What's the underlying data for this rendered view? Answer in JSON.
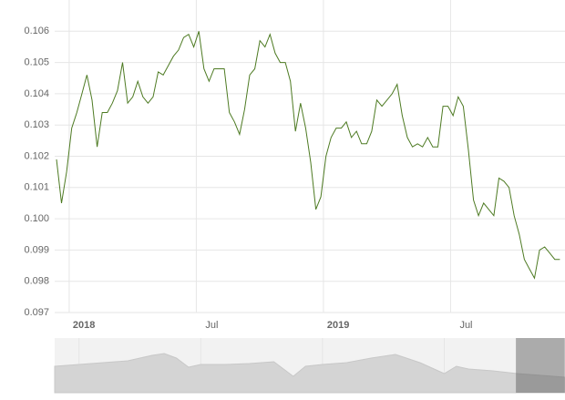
{
  "chart_data": [
    {
      "type": "line",
      "color": "#4d7a22",
      "grid": true,
      "xlim": [
        2017.943,
        2019.95
      ],
      "xticks": [
        2018,
        {
          "value": 2018.5,
          "label": "Jul"
        },
        2019,
        {
          "value": 2019.5,
          "label": "Jul"
        }
      ],
      "ylim": [
        0.097,
        0.107
      ],
      "yticks": [
        0.097,
        0.098,
        0.099,
        {
          "value": 0.1,
          "label": "0.100"
        },
        0.101,
        0.102,
        0.103,
        0.104,
        0.105,
        0.106
      ],
      "x": [
        2017.95,
        2017.97,
        2017.99,
        2018.01,
        2018.03,
        2018.05,
        2018.07,
        2018.09,
        2018.11,
        2018.13,
        2018.15,
        2018.17,
        2018.19,
        2018.21,
        2018.23,
        2018.25,
        2018.27,
        2018.29,
        2018.31,
        2018.33,
        2018.35,
        2018.37,
        2018.39,
        2018.41,
        2018.43,
        2018.45,
        2018.47,
        2018.49,
        2018.51,
        2018.53,
        2018.55,
        2018.57,
        2018.59,
        2018.61,
        2018.63,
        2018.65,
        2018.67,
        2018.69,
        2018.71,
        2018.73,
        2018.75,
        2018.77,
        2018.79,
        2018.81,
        2018.83,
        2018.85,
        2018.87,
        2018.89,
        2018.91,
        2018.93,
        2018.95,
        2018.97,
        2018.99,
        2019.01,
        2019.03,
        2019.05,
        2019.07,
        2019.09,
        2019.11,
        2019.13,
        2019.15,
        2019.17,
        2019.19,
        2019.21,
        2019.23,
        2019.25,
        2019.27,
        2019.29,
        2019.31,
        2019.33,
        2019.35,
        2019.37,
        2019.39,
        2019.41,
        2019.43,
        2019.45,
        2019.47,
        2019.49,
        2019.51,
        2019.53,
        2019.55,
        2019.57,
        2019.59,
        2019.61,
        2019.63,
        2019.65,
        2019.67,
        2019.69,
        2019.71,
        2019.73,
        2019.75,
        2019.77,
        2019.79,
        2019.81,
        2019.83,
        2019.85,
        2019.87,
        2019.89,
        2019.91,
        2019.93
      ],
      "values": [
        0.1019,
        0.1005,
        0.1015,
        0.1029,
        0.1034,
        0.104,
        0.1046,
        0.1038,
        0.1023,
        0.1034,
        0.1034,
        0.1037,
        0.1041,
        0.105,
        0.1037,
        0.1039,
        0.1044,
        0.1039,
        0.1037,
        0.1039,
        0.1047,
        0.1046,
        0.1049,
        0.1052,
        0.1054,
        0.1058,
        0.1059,
        0.1055,
        0.106,
        0.1048,
        0.1044,
        0.1048,
        0.1048,
        0.1048,
        0.1034,
        0.1031,
        0.1027,
        0.1035,
        0.1046,
        0.1048,
        0.1057,
        0.1055,
        0.1059,
        0.1053,
        0.105,
        0.105,
        0.1044,
        0.1028,
        0.1037,
        0.1029,
        0.1018,
        0.1003,
        0.1007,
        0.102,
        0.1026,
        0.1029,
        0.1029,
        0.1031,
        0.1026,
        0.1028,
        0.1024,
        0.1024,
        0.1028,
        0.1038,
        0.1036,
        0.1038,
        0.104,
        0.1043,
        0.1033,
        0.1026,
        0.1023,
        0.1024,
        0.1023,
        0.1026,
        0.1023,
        0.1023,
        0.1036,
        0.1036,
        0.1033,
        0.1039,
        0.1036,
        0.1022,
        0.1006,
        0.1001,
        0.1005,
        0.1003,
        0.1001,
        0.1013,
        0.1012,
        0.101,
        0.1001,
        0.0995,
        0.0987,
        0.0984,
        0.0981,
        0.099,
        0.0991,
        0.0989,
        0.0987,
        0.0987
      ]
    },
    {
      "type": "area",
      "color": "#d4d4d4",
      "xlim": [
        1999,
        2019.96
      ],
      "ylim": [
        0.07,
        0.16
      ],
      "xticks": [
        2000,
        2005,
        2010,
        2015
      ],
      "x": [
        1999,
        2000,
        2001,
        2002,
        2003,
        2003.5,
        2004,
        2004.5,
        2005,
        2006,
        2007,
        2008,
        2008.8,
        2009.3,
        2010,
        2011,
        2012,
        2013,
        2014,
        2015,
        2015.5,
        2016,
        2017,
        2018,
        2019,
        2019.95
      ],
      "values": [
        0.1135,
        0.1165,
        0.1195,
        0.1225,
        0.1315,
        0.1345,
        0.127,
        0.112,
        0.1165,
        0.1165,
        0.118,
        0.121,
        0.097,
        0.1135,
        0.1165,
        0.1195,
        0.127,
        0.133,
        0.1195,
        0.1015,
        0.1135,
        0.109,
        0.106,
        0.1015,
        0.0985,
        0.0955
      ]
    }
  ]
}
